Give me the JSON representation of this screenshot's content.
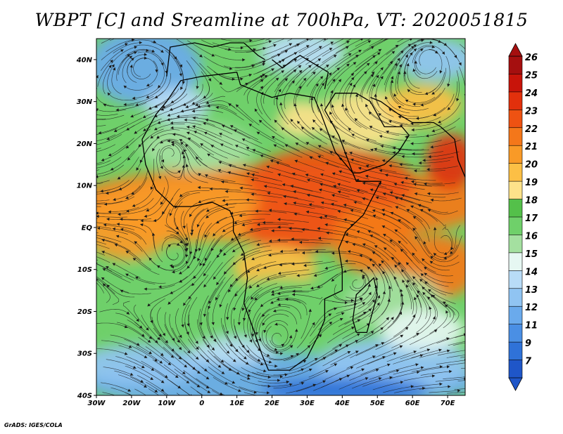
{
  "title": "WBPT [C] and Sreamline at 700hPa, VT: 2020051815",
  "credit": "GrADS: IGES/COLA",
  "map": {
    "lon_range": [
      -30,
      75
    ],
    "lat_range": [
      -40,
      45
    ],
    "lat_ticks": [
      "40N",
      "30N",
      "20N",
      "10N",
      "EQ",
      "10S",
      "20S",
      "30S",
      "40S"
    ],
    "lon_ticks": [
      "30W",
      "20W",
      "10W",
      "0",
      "10E",
      "20E",
      "30E",
      "40E",
      "50E",
      "60E",
      "70E"
    ]
  },
  "colorbar": {
    "labels": [
      "26",
      "25",
      "24",
      "23",
      "22",
      "21",
      "20",
      "19",
      "18",
      "17",
      "16",
      "15",
      "14",
      "13",
      "12",
      "11",
      "9",
      "7"
    ],
    "colors": [
      "#a50f0f",
      "#c8140a",
      "#e2300c",
      "#ee5212",
      "#f4771a",
      "#f99a27",
      "#fcbf45",
      "#fde28a",
      "#54c04a",
      "#6fd06a",
      "#a4e0a0",
      "#e6f7f2",
      "#b8dcf7",
      "#90c4f2",
      "#6aaaec",
      "#4a8fe4",
      "#2f72d8",
      "#1f56c8"
    ]
  }
}
